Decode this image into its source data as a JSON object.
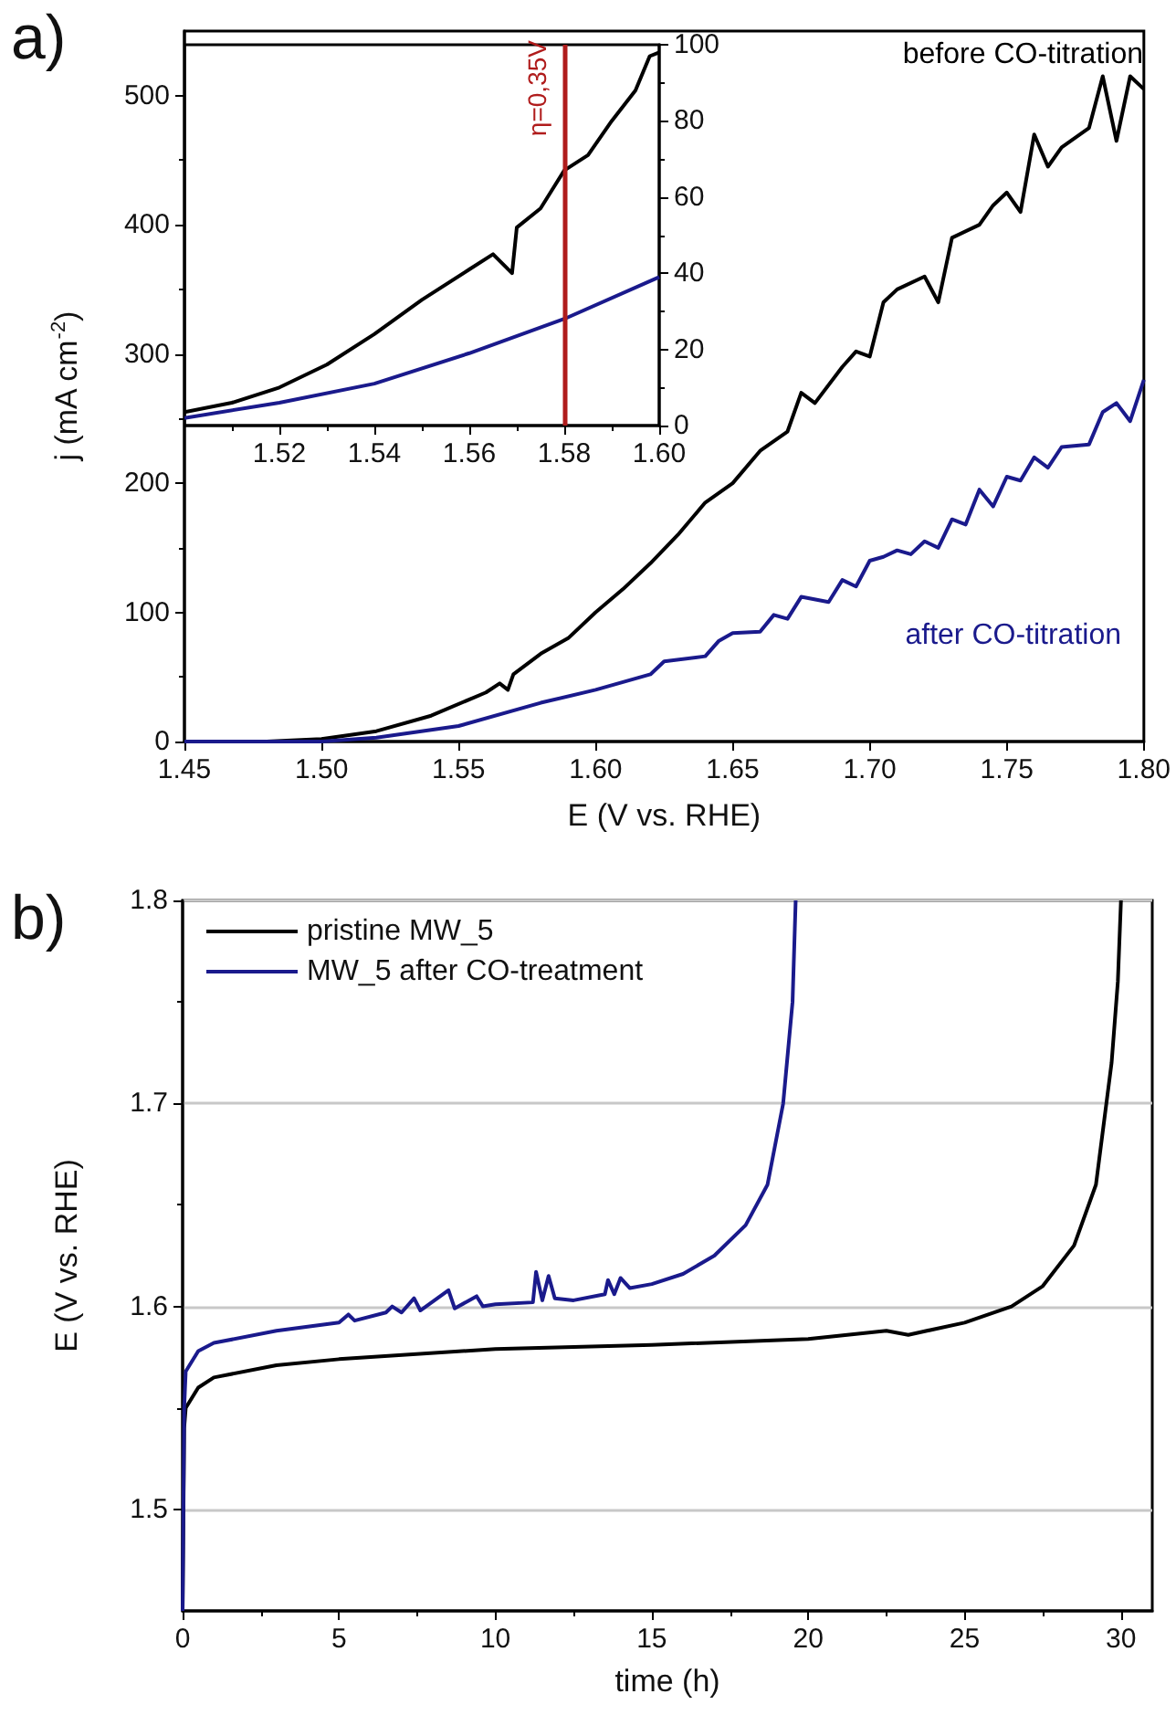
{
  "chart_data": [
    {
      "type": "line",
      "xlabel": "E (V vs. RHE)",
      "ylabel": "j (mA cm$^{-2}$)",
      "xlim": [
        1.45,
        1.8
      ],
      "xticks": [
        1.45,
        {
          "value": 1.5,
          "label": "1.50"
        },
        1.55,
        {
          "value": 1.6,
          "label": "1.60"
        },
        1.65,
        {
          "value": 1.7,
          "label": "1.70"
        },
        1.75,
        {
          "value": 1.8,
          "label": "1.80"
        }
      ],
      "ylim": [
        0,
        550
      ],
      "yticks": [
        0,
        100,
        200,
        300,
        400,
        500
      ],
      "grid": false,
      "legend": false,
      "annotations": [
        "a)"
      ],
      "series": [
        {
          "name": "before CO-titration",
          "color": "#000000",
          "x": [
            1.45,
            1.48,
            1.5,
            1.52,
            1.54,
            1.56,
            1.565,
            1.568,
            1.57,
            1.58,
            1.59,
            1.6,
            1.61,
            1.62,
            1.63,
            1.64,
            1.65,
            1.66,
            1.67,
            1.675,
            1.68,
            1.69,
            1.695,
            1.7,
            1.705,
            1.71,
            1.72,
            1.725,
            1.73,
            1.74,
            1.745,
            1.75,
            1.755,
            1.76,
            1.765,
            1.77,
            1.78,
            1.785,
            1.79,
            1.795,
            1.8
          ],
          "values": [
            0,
            0,
            2,
            8,
            20,
            38,
            45,
            40,
            52,
            68,
            80,
            100,
            118,
            138,
            160,
            185,
            200,
            225,
            240,
            270,
            262,
            290,
            302,
            298,
            340,
            350,
            360,
            340,
            390,
            400,
            415,
            425,
            410,
            470,
            445,
            460,
            475,
            515,
            465,
            515,
            505
          ]
        },
        {
          "name": "after CO-titration",
          "color": "#1a1a8c",
          "x": [
            1.45,
            1.5,
            1.52,
            1.55,
            1.58,
            1.6,
            1.62,
            1.625,
            1.64,
            1.645,
            1.65,
            1.66,
            1.665,
            1.67,
            1.675,
            1.685,
            1.69,
            1.695,
            1.7,
            1.705,
            1.71,
            1.715,
            1.72,
            1.725,
            1.73,
            1.735,
            1.74,
            1.745,
            1.75,
            1.755,
            1.76,
            1.765,
            1.77,
            1.78,
            1.785,
            1.79,
            1.795,
            1.8
          ],
          "values": [
            0,
            0,
            3,
            12,
            30,
            40,
            52,
            62,
            66,
            78,
            84,
            85,
            98,
            95,
            112,
            108,
            125,
            120,
            140,
            143,
            148,
            145,
            155,
            150,
            172,
            168,
            195,
            182,
            205,
            202,
            220,
            212,
            228,
            230,
            255,
            262,
            248,
            280
          ]
        }
      ]
    },
    {
      "type": "line",
      "xlim": [
        1.5,
        1.6
      ],
      "xticks": [
        1.52,
        1.54,
        1.56,
        1.58,
        {
          "value": 1.6,
          "label": "1.60"
        }
      ],
      "ylim": [
        0,
        100
      ],
      "yticks": [
        0,
        20,
        40,
        60,
        80,
        100
      ],
      "grid": false,
      "legend": false,
      "ref_lines": [
        {
          "axis": "x",
          "value": 1.58,
          "color": "#b01c1c"
        }
      ],
      "annotations": [
        "η=0,35V"
      ],
      "series": [
        {
          "color": "#000000",
          "x": [
            1.5,
            1.51,
            1.52,
            1.53,
            1.54,
            1.55,
            1.56,
            1.565,
            1.569,
            1.57,
            1.575,
            1.578,
            1.58,
            1.585,
            1.59,
            1.595,
            1.598,
            1.6
          ],
          "values": [
            3.5,
            6,
            10,
            16,
            24,
            33,
            41,
            45,
            40,
            52,
            57,
            63,
            67,
            71,
            80,
            88,
            97,
            98
          ]
        },
        {
          "color": "#1a1a8c",
          "x": [
            1.5,
            1.52,
            1.54,
            1.56,
            1.58,
            1.6
          ],
          "values": [
            2,
            6,
            11,
            19,
            28,
            39
          ]
        }
      ]
    },
    {
      "type": "line",
      "xlabel": "time (h)",
      "ylabel": "E (V vs. RHE)",
      "xlim": [
        0,
        31
      ],
      "xticks": [
        0,
        5,
        10,
        15,
        20,
        25,
        30
      ],
      "ylim": [
        1.45,
        1.8
      ],
      "yticks": [
        1.5,
        1.6,
        1.7,
        1.8
      ],
      "grid": "y",
      "legend": "top left",
      "annotations": [
        "b)"
      ],
      "series": [
        {
          "name": "pristine MW_5",
          "color": "#000000",
          "x": [
            0,
            0.05,
            0.1,
            0.5,
            1,
            3,
            5,
            10,
            15,
            20,
            22.5,
            23.2,
            25,
            26.5,
            27.5,
            28.5,
            29.2,
            29.7,
            29.9,
            30
          ],
          "values": [
            1.45,
            1.54,
            1.55,
            1.56,
            1.565,
            1.571,
            1.574,
            1.579,
            1.581,
            1.584,
            1.588,
            1.586,
            1.592,
            1.6,
            1.61,
            1.63,
            1.66,
            1.72,
            1.76,
            1.8
          ]
        },
        {
          "name": "MW_5 after CO-treatment",
          "color": "#1a1a8c",
          "x": [
            0,
            0.05,
            0.1,
            0.5,
            1,
            3,
            5,
            5.3,
            5.5,
            6.5,
            6.7,
            7,
            7.4,
            7.6,
            8.5,
            8.7,
            9.4,
            9.6,
            10,
            11.2,
            11.3,
            11.5,
            11.7,
            11.9,
            12.5,
            13.5,
            13.6,
            13.8,
            14,
            14.3,
            15,
            16,
            17,
            18,
            18.7,
            19.2,
            19.5,
            19.6
          ],
          "values": [
            1.45,
            1.55,
            1.568,
            1.578,
            1.582,
            1.588,
            1.592,
            1.596,
            1.593,
            1.597,
            1.6,
            1.597,
            1.604,
            1.598,
            1.608,
            1.599,
            1.605,
            1.6,
            1.601,
            1.602,
            1.617,
            1.603,
            1.615,
            1.604,
            1.603,
            1.606,
            1.613,
            1.606,
            1.614,
            1.609,
            1.611,
            1.616,
            1.625,
            1.64,
            1.66,
            1.7,
            1.75,
            1.8
          ]
        }
      ]
    }
  ]
}
